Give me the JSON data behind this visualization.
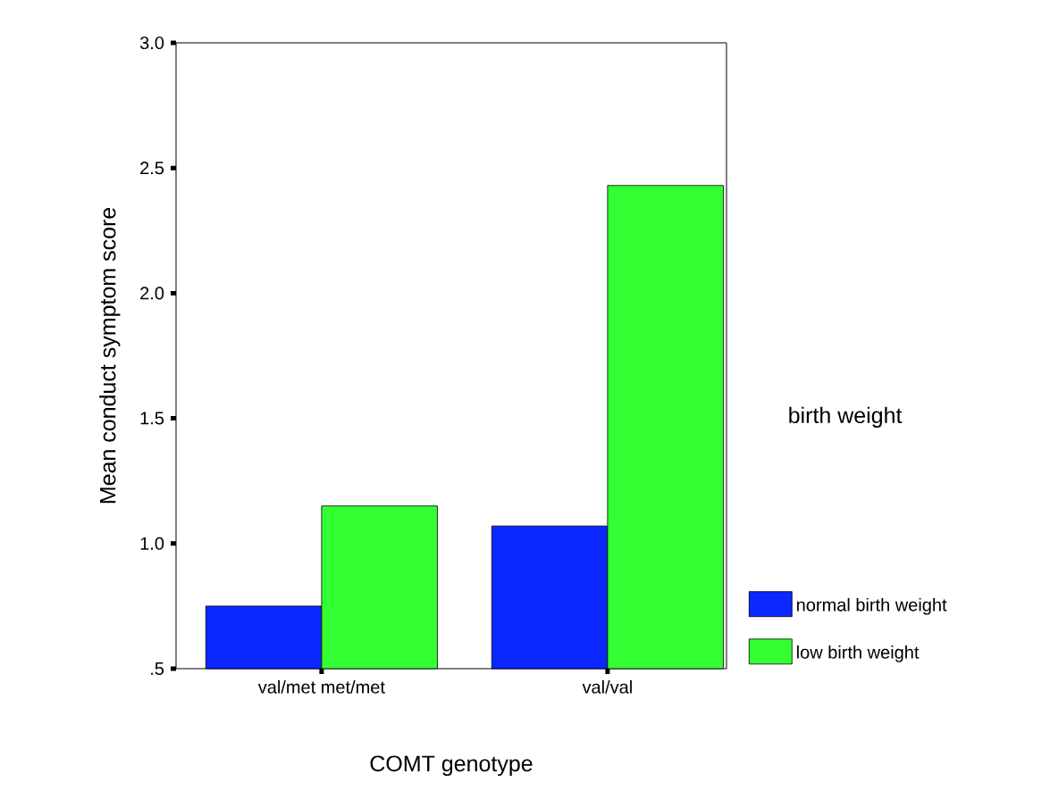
{
  "chart_data": {
    "type": "bar",
    "xlabel": "COMT genotype",
    "ylabel": "Mean conduct symptom score",
    "legend_title": "birth weight",
    "categories": [
      "val/met met/met",
      "val/val"
    ],
    "series": [
      {
        "name": "normal birth weight",
        "color": "#0a28ff",
        "values": [
          0.75,
          1.07
        ]
      },
      {
        "name": "low birth weight",
        "color": "#33ff33",
        "values": [
          1.15,
          2.43
        ]
      }
    ],
    "ylim": [
      0.5,
      3.0
    ],
    "yticks": [
      {
        "value": 0.5,
        "label": ".5"
      },
      {
        "value": 1.0,
        "label": "1.0"
      },
      {
        "value": 1.5,
        "label": "1.5"
      },
      {
        "value": 2.0,
        "label": "2.0"
      },
      {
        "value": 2.5,
        "label": "2.5"
      },
      {
        "value": 3.0,
        "label": "3.0"
      }
    ],
    "grid": false,
    "legend": "right"
  }
}
